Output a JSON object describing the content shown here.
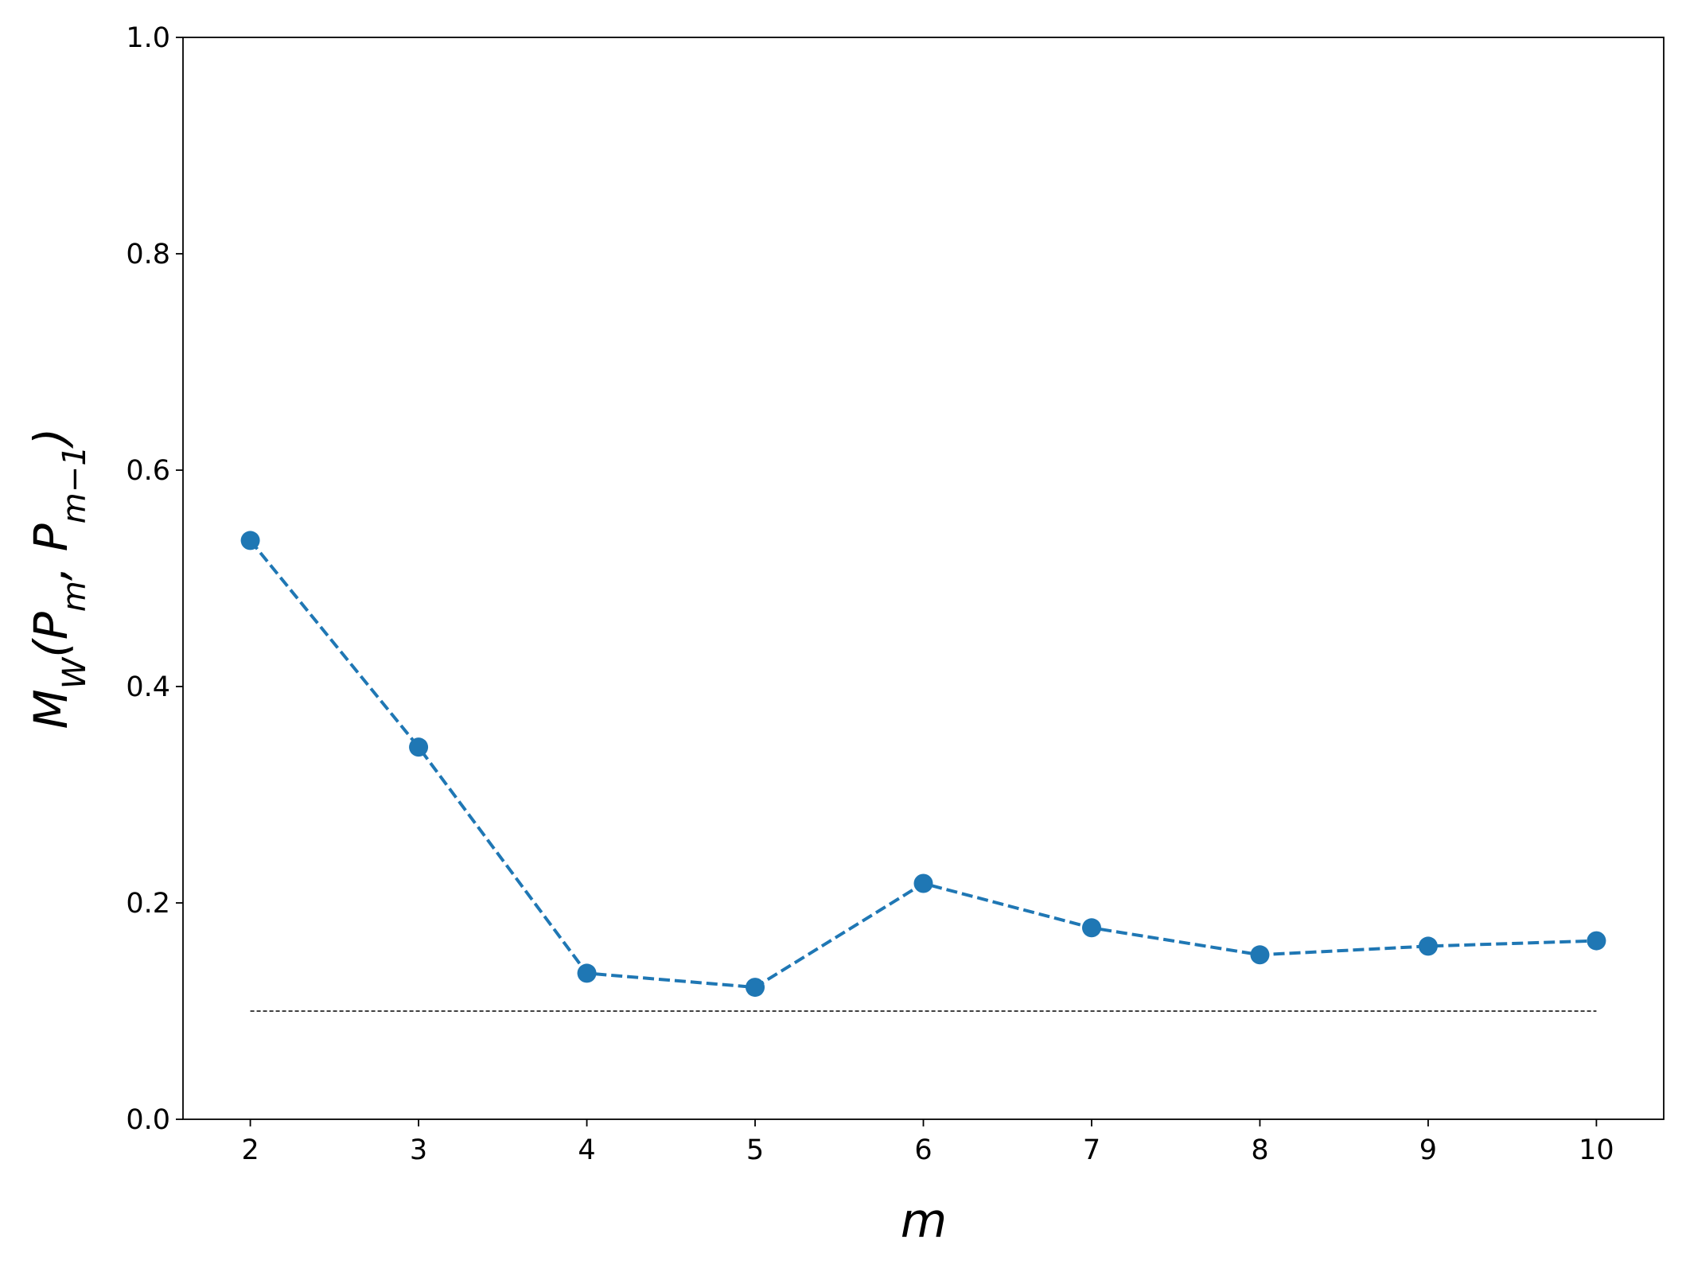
{
  "chart_data": {
    "type": "line",
    "xlabel": "m",
    "ylabel": {
      "parts": [
        {
          "text": "M"
        },
        {
          "text": "W",
          "sub": true
        },
        {
          "text": "(P"
        },
        {
          "text": "m",
          "sub": true
        },
        {
          "text": ", P"
        },
        {
          "text": "m−1",
          "sub": true
        },
        {
          "text": ")"
        }
      ]
    },
    "x": [
      2,
      3,
      4,
      5,
      6,
      7,
      8,
      9,
      10
    ],
    "series": [
      {
        "color": "#1f77b4",
        "values": [
          0.535,
          0.344,
          0.135,
          0.122,
          0.218,
          0.177,
          0.152,
          0.16,
          0.165
        ]
      }
    ],
    "hline": {
      "y": 0.1,
      "xmin": 2,
      "xmax": 10,
      "color": "#000000"
    },
    "xlim": [
      1.6,
      10.4
    ],
    "xticks": [
      2,
      3,
      4,
      5,
      6,
      7,
      8,
      9,
      10
    ],
    "ylim": [
      0,
      1
    ],
    "yticks": [
      {
        "value": 0,
        "label": "0.0"
      },
      0.2,
      0.4,
      0.6,
      0.8,
      {
        "value": 1,
        "label": "1.0"
      }
    ]
  }
}
